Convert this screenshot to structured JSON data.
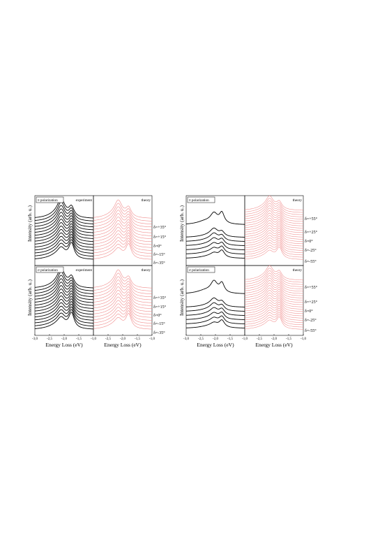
{
  "figure": {
    "panels": [
      {
        "id": "left-top",
        "polarization_label": "π polarization",
        "experiment_label": "experiment",
        "theory_label": "theory",
        "y_axis_label": "",
        "x_axis_label": "",
        "delta_labels": [
          "δ=+35°",
          "δ=+15°",
          "δ=0°",
          "δ=-15°",
          "δ=-35°"
        ]
      },
      {
        "id": "left-bottom",
        "polarization_label": "σ polarization",
        "experiment_label": "experiment",
        "theory_label": "theory",
        "y_axis_label": "Intensity (arb. u.)",
        "x_axis_label": "Energy Loss (eV)",
        "delta_labels": [
          "δ=+35°",
          "δ=+15°",
          "δ=0°",
          "δ=-15°",
          "δ=-35°"
        ]
      },
      {
        "id": "right-top",
        "polarization_label": "π polarization",
        "experiment_label": "",
        "theory_label": "theory",
        "y_axis_label": "",
        "x_axis_label": "",
        "delta_labels": [
          "δ=+55°",
          "δ=+25°",
          "δ=0°",
          "δ=-25°",
          "δ=-55°"
        ]
      },
      {
        "id": "right-bottom",
        "polarization_label": "σ polarization",
        "experiment_label": "",
        "theory_label": "theory",
        "y_axis_label": "Intensity (arb. u.)",
        "x_axis_label": "Energy Loss (eV)",
        "delta_labels": [
          "δ=+55°",
          "δ=+25°",
          "δ=0°",
          "δ=-25°",
          "δ=-55°"
        ]
      }
    ],
    "left_top_y_axis_label": "Intensity (arb. u.)",
    "right_top_y_axis_label": "Intensity (arb. u.)"
  },
  "colors": {
    "experiment": "#000000",
    "theory": "#f08a8a"
  },
  "chart_data": {
    "type": "line",
    "description_series": "stacked RIXS spectra, vertically offset",
    "xlim": [
      -3.0,
      -1.0
    ],
    "x_ticks": [
      "-3,0",
      "-2,5",
      "-2,0",
      "-1,5",
      "-1,0"
    ],
    "x_ticks_theory": [
      "-2,5",
      "-2,0",
      "-1,5",
      "-1,0"
    ],
    "xlabel": "Energy Loss (eV)",
    "ylabel": "Intensity (arb. u.)",
    "panels": [
      {
        "id": "left-top",
        "polarization": "π",
        "exp_curves": 15,
        "theory_curves": 15,
        "peaks_exp": [
          -2.1,
          -1.75
        ],
        "peaks_theory": [
          -2.15,
          -1.8
        ]
      },
      {
        "id": "left-bottom",
        "polarization": "σ",
        "exp_curves": 15,
        "theory_curves": 15,
        "peaks_exp": [
          -2.1,
          -1.75
        ],
        "peaks_theory": [
          -2.15,
          -1.8
        ]
      },
      {
        "id": "right-top",
        "polarization": "π",
        "exp_curves": 7,
        "theory_curves": 23,
        "peaks_exp": [
          -2.05,
          -1.78
        ],
        "peaks_theory": [
          -2.15,
          -1.82
        ]
      },
      {
        "id": "right-bottom",
        "polarization": "σ",
        "exp_curves": 7,
        "theory_curves": 23,
        "peaks_exp": [
          -2.05,
          -1.78
        ],
        "peaks_theory": [
          -2.15,
          -1.82
        ]
      }
    ]
  }
}
